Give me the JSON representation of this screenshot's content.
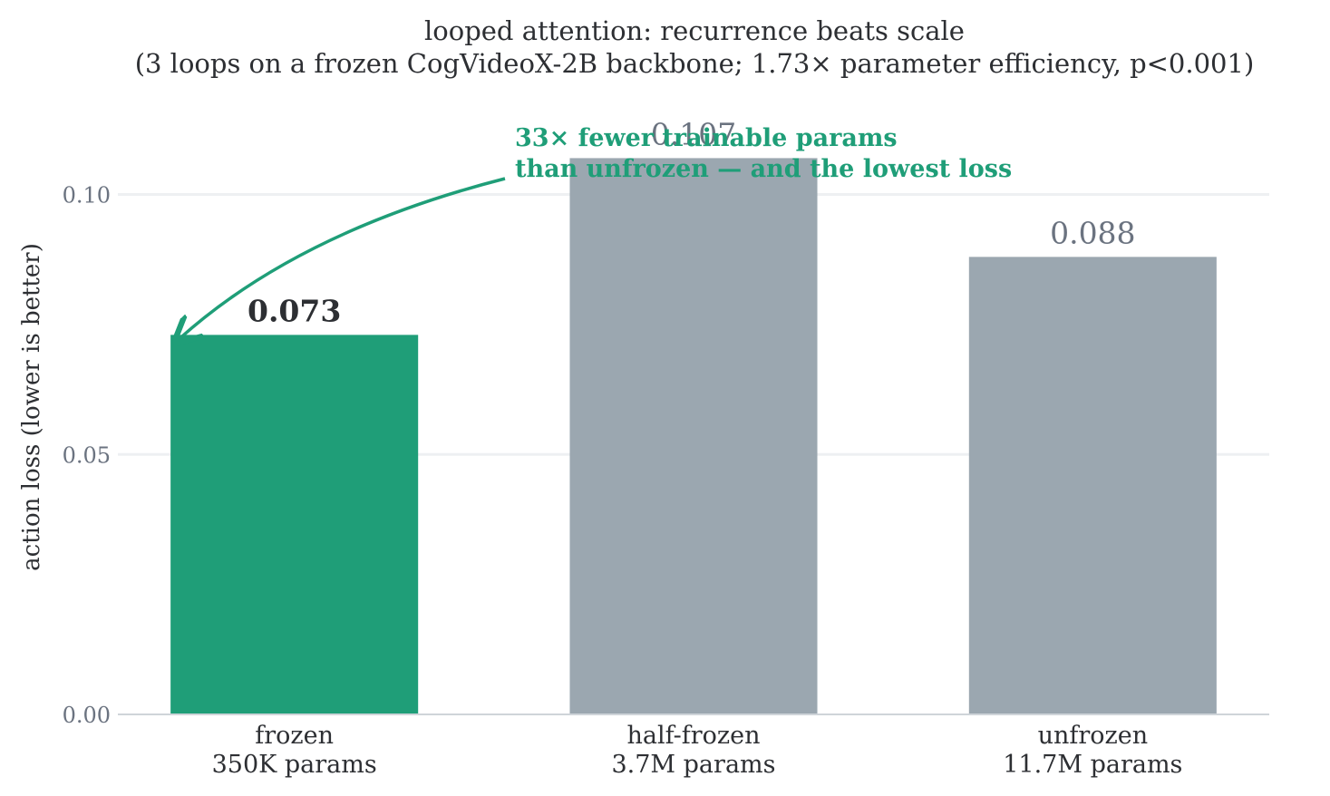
{
  "chart_data": {
    "type": "bar",
    "title": "looped attention: recurrence beats scale",
    "subtitle": "(3 loops on a frozen CogVideoX-2B backbone; 1.73× parameter efficiency, p<0.001)",
    "ylabel": "action loss  (lower is better)",
    "xlabel": "",
    "categories": [
      {
        "name": "frozen",
        "params": "350K params"
      },
      {
        "name": "half-frozen",
        "params": "3.7M params"
      },
      {
        "name": "unfrozen",
        "params": "11.7M params"
      }
    ],
    "values": [
      0.073,
      0.107,
      0.088
    ],
    "value_labels": [
      "0.073",
      "0.107",
      "0.088"
    ],
    "highlight_index": 0,
    "ylim": [
      0,
      0.113
    ],
    "yticks": [
      {
        "value": 0.0,
        "label": "0.00"
      },
      {
        "value": 0.05,
        "label": "0.05"
      },
      {
        "value": 0.1,
        "label": "0.10"
      }
    ],
    "grid": "horizontal",
    "colors": {
      "highlight": "#1f9e78",
      "default": "#9ba7b0",
      "grid": "#eef0f2",
      "axis": "#cfd4d9"
    },
    "annotation": {
      "lines": [
        "33× fewer trainable params",
        "than unfrozen — and the lowest loss"
      ],
      "target_index": 0,
      "color": "#1f9e78"
    }
  }
}
